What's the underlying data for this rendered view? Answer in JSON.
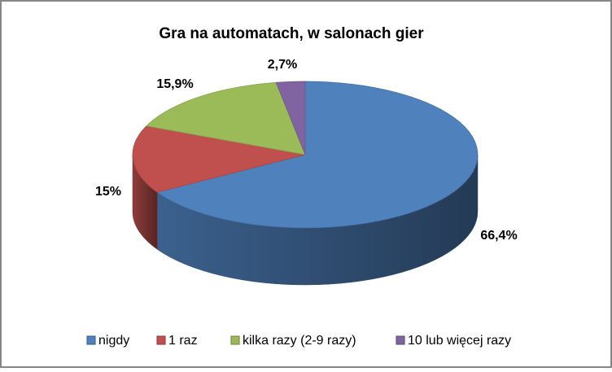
{
  "chart_data": {
    "type": "pie3d",
    "title": "Gra na automatach, w salonach gier",
    "categories": [
      "nigdy",
      "1 raz",
      "kilka razy (2-9 razy)",
      "10 lub więcej razy"
    ],
    "values": [
      66.4,
      15,
      15.9,
      2.7
    ],
    "value_labels": [
      "66,4%",
      "15%",
      "15,9%",
      "2,7%"
    ],
    "colors": [
      "#4f81bd",
      "#c0504d",
      "#9bbb59",
      "#8064a2"
    ],
    "legend": "bottom"
  }
}
